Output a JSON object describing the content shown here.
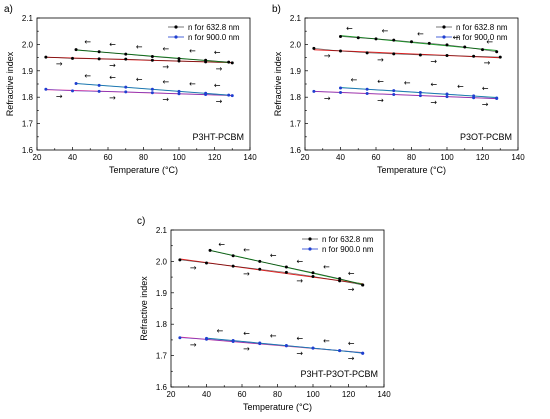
{
  "chart_data": [
    {
      "type": "line",
      "panel_label": "a)",
      "sample_label": "P3HT-PCBM",
      "xlabel": "Temperature (°C)",
      "ylabel": "Refractive index",
      "xlim": [
        20,
        140
      ],
      "ylim": [
        1.6,
        2.1
      ],
      "xticks": [
        "20",
        "40",
        "60",
        "80",
        "100",
        "120",
        "140"
      ],
      "yticks": [
        "1.6",
        "1.7",
        "1.8",
        "1.9",
        "2.0",
        "2.1"
      ],
      "legend_position": "top-right",
      "legend": [
        "n for 632.8 nm",
        "n for 900.0 nm"
      ],
      "series": [
        {
          "legend_index": 0,
          "direction": "heating",
          "marker_color": "#000000",
          "fit_color": "#e02020",
          "x": [
            25,
            40,
            55,
            70,
            85,
            100,
            115,
            130
          ],
          "y": [
            1.952,
            1.947,
            1.945,
            1.944,
            1.94,
            1.937,
            1.934,
            1.93
          ]
        },
        {
          "legend_index": 0,
          "direction": "cooling",
          "marker_color": "#000000",
          "fit_color": "#1f9e2c",
          "x": [
            42,
            55,
            70,
            85,
            100,
            115,
            128
          ],
          "y": [
            1.98,
            1.972,
            1.963,
            1.954,
            1.946,
            1.94,
            1.933
          ]
        },
        {
          "legend_index": 1,
          "direction": "heating",
          "marker_color": "#1f3fd0",
          "fit_color": "#e0309a",
          "x": [
            25,
            40,
            55,
            70,
            85,
            100,
            115,
            130
          ],
          "y": [
            1.83,
            1.824,
            1.822,
            1.82,
            1.817,
            1.813,
            1.81,
            1.806
          ]
        },
        {
          "legend_index": 1,
          "direction": "cooling",
          "marker_color": "#1f3fd0",
          "fit_color": "#1f9e9e",
          "x": [
            42,
            55,
            70,
            85,
            100,
            115,
            128
          ],
          "y": [
            1.852,
            1.845,
            1.838,
            1.83,
            1.822,
            1.815,
            1.808
          ]
        }
      ]
    },
    {
      "type": "line",
      "panel_label": "b)",
      "sample_label": "P3OT-PCBM",
      "xlabel": "Temperature (°C)",
      "ylabel": "Refractive index",
      "xlim": [
        20,
        140
      ],
      "ylim": [
        1.6,
        2.1
      ],
      "xticks": [
        "20",
        "40",
        "60",
        "80",
        "100",
        "120",
        "140"
      ],
      "yticks": [
        "1.6",
        "1.7",
        "1.8",
        "1.9",
        "2.0",
        "2.1"
      ],
      "legend_position": "top-right",
      "legend": [
        "n for 632.8 nm",
        "n for 900.0 nm"
      ],
      "series": [
        {
          "legend_index": 0,
          "direction": "heating",
          "marker_color": "#000000",
          "fit_color": "#e02020",
          "x": [
            25,
            40,
            55,
            70,
            85,
            100,
            115,
            130
          ],
          "y": [
            1.985,
            1.975,
            1.968,
            1.964,
            1.96,
            1.958,
            1.955,
            1.952
          ]
        },
        {
          "legend_index": 0,
          "direction": "cooling",
          "marker_color": "#000000",
          "fit_color": "#1f9e2c",
          "x": [
            40,
            50,
            60,
            70,
            80,
            90,
            100,
            110,
            120,
            128
          ],
          "y": [
            2.03,
            2.025,
            2.021,
            2.016,
            2.01,
            2.004,
            1.998,
            1.99,
            1.98,
            1.972
          ]
        },
        {
          "legend_index": 1,
          "direction": "heating",
          "marker_color": "#1f3fd0",
          "fit_color": "#e0309a",
          "x": [
            25,
            40,
            55,
            70,
            85,
            100,
            115,
            128
          ],
          "y": [
            1.822,
            1.818,
            1.814,
            1.81,
            1.806,
            1.802,
            1.798,
            1.795
          ]
        },
        {
          "legend_index": 1,
          "direction": "cooling",
          "marker_color": "#1f3fd0",
          "fit_color": "#1f9e9e",
          "x": [
            40,
            55,
            70,
            85,
            100,
            115,
            128
          ],
          "y": [
            1.835,
            1.83,
            1.825,
            1.818,
            1.812,
            1.805,
            1.797
          ]
        }
      ]
    },
    {
      "type": "line",
      "panel_label": "c)",
      "sample_label": "P3HT-P3OT-PCBM",
      "xlabel": "Temperature (°C)",
      "ylabel": "Refractive index",
      "xlim": [
        20,
        140
      ],
      "ylim": [
        1.6,
        2.1
      ],
      "xticks": [
        "20",
        "40",
        "60",
        "80",
        "100",
        "120",
        "140"
      ],
      "yticks": [
        "1.6",
        "1.7",
        "1.8",
        "1.9",
        "2.0",
        "2.1"
      ],
      "legend_position": "top-right",
      "legend": [
        "n for 632.8 nm",
        "n for 900.0 nm"
      ],
      "series": [
        {
          "legend_index": 0,
          "direction": "heating",
          "marker_color": "#000000",
          "fit_color": "#e02020",
          "x": [
            25,
            40,
            55,
            70,
            85,
            100,
            115,
            128
          ],
          "y": [
            2.005,
            1.995,
            1.985,
            1.975,
            1.965,
            1.952,
            1.938,
            1.925
          ]
        },
        {
          "legend_index": 0,
          "direction": "cooling",
          "marker_color": "#000000",
          "fit_color": "#1f9e2c",
          "x": [
            42,
            55,
            70,
            85,
            100,
            115,
            128
          ],
          "y": [
            2.035,
            2.018,
            2.0,
            1.982,
            1.964,
            1.945,
            1.925
          ]
        },
        {
          "legend_index": 1,
          "direction": "heating",
          "marker_color": "#1f3fd0",
          "fit_color": "#e0309a",
          "x": [
            25,
            40,
            55,
            70,
            85,
            100,
            115,
            128
          ],
          "y": [
            1.757,
            1.752,
            1.745,
            1.738,
            1.731,
            1.724,
            1.716,
            1.707
          ]
        },
        {
          "legend_index": 1,
          "direction": "cooling",
          "marker_color": "#1f3fd0",
          "fit_color": "#1f9e9e",
          "x": [
            40,
            55,
            70,
            85,
            100,
            115,
            128
          ],
          "y": [
            1.755,
            1.748,
            1.74,
            1.732,
            1.724,
            1.716,
            1.708
          ]
        }
      ]
    }
  ]
}
